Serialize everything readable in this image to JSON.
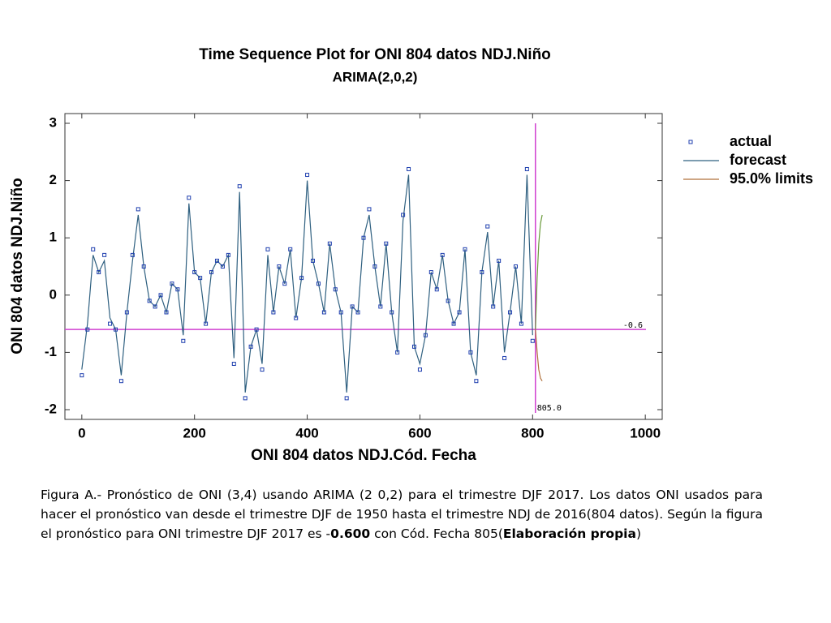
{
  "chart_data": {
    "type": "line",
    "title": "Time Sequence Plot for ONI  804 datos NDJ.Niño",
    "subtitle": "ARIMA(2,0,2)",
    "ylabel": "ONI  804 datos NDJ.Niño",
    "xlabel": "ONI  804 datos NDJ.Cód. Fecha",
    "xlim": [
      -30,
      1030
    ],
    "ylim": [
      -2.17,
      3.17
    ],
    "xticks": [
      0,
      200,
      400,
      600,
      800,
      1000
    ],
    "yticks": [
      -2,
      -1,
      0,
      1,
      2,
      3
    ],
    "x": [
      0,
      10,
      20,
      30,
      40,
      50,
      60,
      70,
      80,
      90,
      100,
      110,
      120,
      130,
      140,
      150,
      160,
      170,
      180,
      190,
      200,
      210,
      220,
      230,
      240,
      250,
      260,
      270,
      280,
      290,
      300,
      310,
      320,
      330,
      340,
      350,
      360,
      370,
      380,
      390,
      400,
      410,
      420,
      430,
      440,
      450,
      460,
      470,
      480,
      490,
      500,
      510,
      520,
      530,
      540,
      550,
      560,
      570,
      580,
      590,
      600,
      610,
      620,
      630,
      640,
      650,
      660,
      670,
      680,
      690,
      700,
      710,
      720,
      730,
      740,
      750,
      760,
      770,
      780,
      790,
      800
    ],
    "series": [
      {
        "name": "actual",
        "color": "#1f3faf",
        "marker": "square",
        "values": [
          -1.4,
          -0.6,
          0.8,
          0.4,
          0.7,
          -0.5,
          -0.6,
          -1.5,
          -0.3,
          0.7,
          1.5,
          0.5,
          -0.1,
          -0.2,
          0.0,
          -0.3,
          0.2,
          0.1,
          -0.8,
          1.7,
          0.4,
          0.3,
          -0.5,
          0.4,
          0.6,
          0.5,
          0.7,
          -1.2,
          1.9,
          -1.8,
          -0.9,
          -0.6,
          -1.3,
          0.8,
          -0.3,
          0.5,
          0.2,
          0.8,
          -0.4,
          0.3,
          2.1,
          0.6,
          0.2,
          -0.3,
          0.9,
          0.1,
          -0.3,
          -1.8,
          -0.2,
          -0.3,
          1.0,
          1.5,
          0.5,
          -0.2,
          0.9,
          -0.3,
          -1.0,
          1.4,
          2.2,
          -0.9,
          -1.3,
          -0.7,
          0.4,
          0.1,
          0.7,
          -0.1,
          -0.5,
          -0.3,
          0.8,
          -1.0,
          -1.5,
          0.4,
          1.2,
          -0.2,
          0.6,
          -1.1,
          -0.3,
          0.5,
          -0.5,
          2.2,
          -0.8
        ]
      },
      {
        "name": "forecast",
        "color": "#2f6080",
        "marker": "none",
        "values": [
          -1.3,
          -0.5,
          0.7,
          0.4,
          0.6,
          -0.4,
          -0.6,
          -1.4,
          -0.3,
          0.6,
          1.4,
          0.5,
          -0.1,
          -0.2,
          0.0,
          -0.3,
          0.2,
          0.1,
          -0.7,
          1.6,
          0.4,
          0.3,
          -0.5,
          0.4,
          0.6,
          0.5,
          0.7,
          -1.1,
          1.8,
          -1.7,
          -0.9,
          -0.6,
          -1.2,
          0.7,
          -0.3,
          0.5,
          0.2,
          0.8,
          -0.4,
          0.3,
          2.0,
          0.6,
          0.2,
          -0.3,
          0.9,
          0.1,
          -0.3,
          -1.7,
          -0.2,
          -0.3,
          1.0,
          1.4,
          0.5,
          -0.2,
          0.9,
          -0.3,
          -1.0,
          1.3,
          2.1,
          -0.9,
          -1.2,
          -0.7,
          0.4,
          0.1,
          0.7,
          -0.1,
          -0.5,
          -0.3,
          0.8,
          -1.0,
          -1.4,
          0.4,
          1.1,
          -0.2,
          0.6,
          -1.0,
          -0.3,
          0.5,
          -0.5,
          2.1,
          -0.7
        ]
      }
    ],
    "limits": {
      "name": "95.0% limits",
      "color": "#b0703a",
      "x": [
        805,
        808,
        811,
        814,
        817
      ],
      "upper": [
        -0.6,
        0.3,
        0.9,
        1.25,
        1.4
      ],
      "lower": [
        -0.6,
        -1.0,
        -1.3,
        -1.45,
        -1.5
      ]
    },
    "hline": {
      "value": -0.6,
      "label": "-0.6",
      "color": "#d040d0"
    },
    "vline": {
      "value": 805,
      "label": "805.0",
      "color": "#d040d0"
    }
  },
  "caption": [
    {
      "text": "Figura A.- Pronóstico de ONI (3,4) usando ARIMA (2 0,2) para el trimestre DJF 2017. Los datos ONI usados para hacer el pronóstico van desde el trimestre DJF de 1950 hasta el trimestre NDJ de 2016(804 datos). Según la figura el pronóstico para ONI trimestre DJF 2017 es  -",
      "bold": false
    },
    {
      "text": "0.600",
      "bold": true
    },
    {
      "text": "  con Cód. Fecha 805(",
      "bold": false
    },
    {
      "text": "Elaboración propia",
      "bold": true
    },
    {
      "text": ")",
      "bold": false
    }
  ]
}
